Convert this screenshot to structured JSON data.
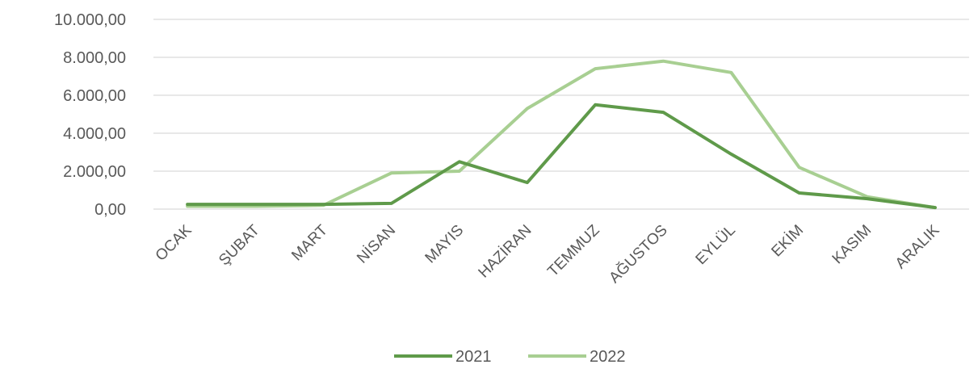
{
  "chart_data": {
    "type": "line",
    "title": "",
    "xlabel": "",
    "ylabel": "",
    "categories": [
      "OCAK",
      "ŞUBAT",
      "MART",
      "NİSAN",
      "MAYIS",
      "HAZİRAN",
      "TEMMUZ",
      "AĞUSTOS",
      "EYLÜL",
      "EKİM",
      "KASIM",
      "ARALIK"
    ],
    "y_ticks": [
      "0,00",
      "2.000,00",
      "4.000,00",
      "6.000,00",
      "8.000,00",
      "10.000,00"
    ],
    "ylim": [
      0,
      10000
    ],
    "grid": true,
    "legend_position": "bottom",
    "series": [
      {
        "name": "2021",
        "color": "#5f9a4a",
        "values": [
          250,
          250,
          250,
          300,
          2500,
          1400,
          5500,
          5100,
          2900,
          850,
          550,
          80
        ]
      },
      {
        "name": "2022",
        "color": "#a8cf92",
        "values": [
          150,
          150,
          200,
          1900,
          2000,
          5300,
          7400,
          7800,
          7200,
          2200,
          650,
          80
        ]
      }
    ]
  }
}
